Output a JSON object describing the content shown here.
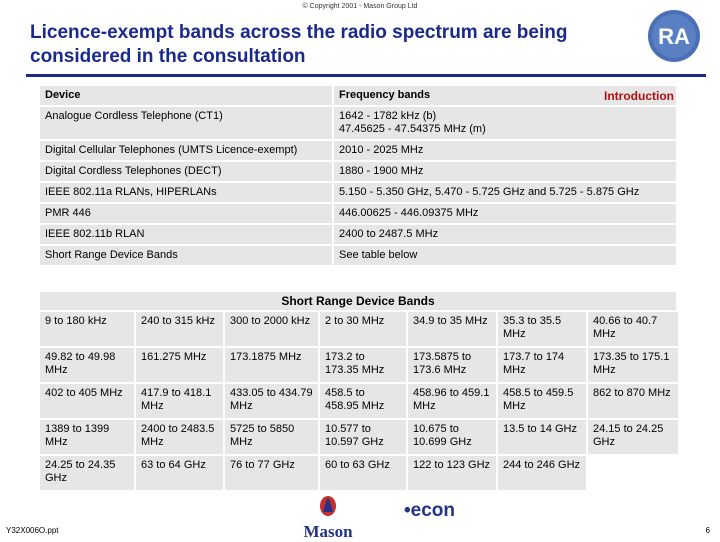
{
  "copyright": "© Copyright 2001 - Mason Group Ltd",
  "title": "Licence-exempt bands across the radio spectrum are being considered in the consultation",
  "logo_text": "RA",
  "intro_link": "Introduction",
  "table1": {
    "headers": [
      "Device",
      "Frequency bands"
    ],
    "rows": [
      [
        "Analogue Cordless Telephone (CT1)",
        "1642 - 1782 kHz (b)\n47.45625 - 47.54375 MHz (m)"
      ],
      [
        "Digital Cellular Telephones (UMTS Licence-exempt)",
        "2010 - 2025 MHz"
      ],
      [
        "Digital Cordless Telephones (DECT)",
        "1880 - 1900 MHz"
      ],
      [
        "IEEE 802.11a RLANs, HIPERLANs",
        "5.150 - 5.350 GHz, 5.470 - 5.725 GHz and 5.725 - 5.875 GHz"
      ],
      [
        "PMR 446",
        "446.00625 - 446.09375 MHz"
      ],
      [
        "IEEE 802.11b RLAN",
        "2400 to 2487.5 MHz"
      ],
      [
        "Short Range Device Bands",
        "See table below"
      ]
    ]
  },
  "table2": {
    "title": "Short Range Device Bands",
    "rows": [
      [
        "9 to 180 kHz",
        "240 to 315 kHz",
        "300 to 2000 kHz",
        "2 to 30 MHz",
        "34.9 to 35 MHz",
        "35.3 to 35.5 MHz",
        "40.66 to 40.7 MHz"
      ],
      [
        "49.82 to 49.98 MHz",
        "161.275 MHz",
        "173.1875 MHz",
        "173.2 to 173.35 MHz",
        "173.5875 to 173.6 MHz",
        "173.7 to 174 MHz",
        "173.35 to 175.1 MHz"
      ],
      [
        "402 to 405 MHz",
        "417.9 to 418.1 MHz",
        "433.05 to 434.79 MHz",
        "458.5 to 458.95 MHz",
        "458.96 to 459.1 MHz",
        "458.5 to 459.5 MHz",
        "862 to 870 MHz"
      ],
      [
        "1389 to 1399 MHz",
        "2400 to 2483.5 MHz",
        "5725 to 5850 MHz",
        "10.577 to 10.597 GHz",
        "10.675 to 10.699 GHz",
        "13.5 to 14 GHz",
        "24.15 to 24.25 GHz"
      ],
      [
        "24.25 to 24.35 GHz",
        "63 to 64 GHz",
        "76 to 77 GHz",
        "60 to 63 GHz",
        "122 to 123 GHz",
        "244 to 246 GHz",
        ""
      ]
    ]
  },
  "footer": {
    "code": "Y32X006O.ppt",
    "mason": "Mason",
    "econ": "•econ",
    "page": "6"
  }
}
